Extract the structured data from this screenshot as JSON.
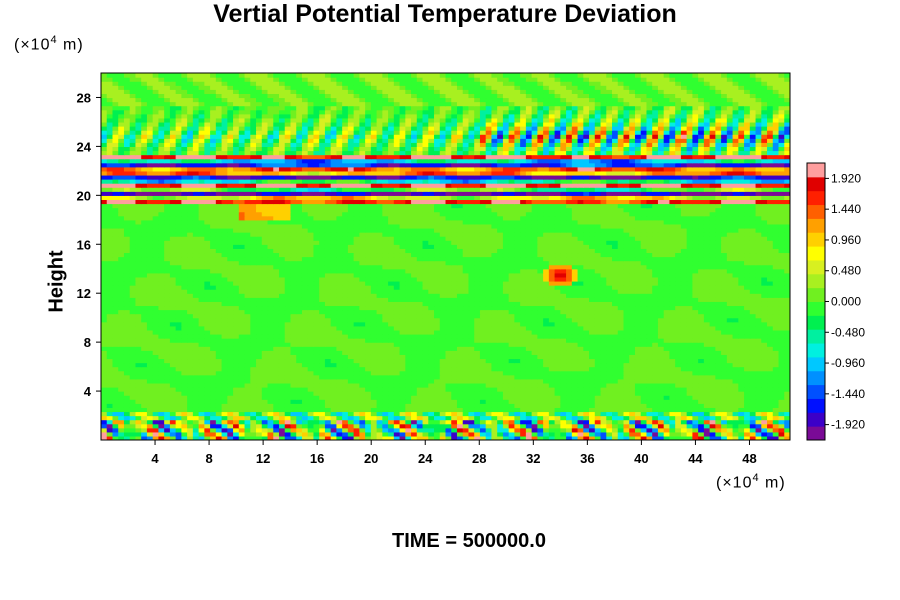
{
  "chart_data": {
    "type": "heatmap",
    "title": "Vertial Potential Temperature Deviation",
    "ylabel": "Height",
    "xunit": {
      "prefix": "(×10",
      "exp": "4",
      "suffix": " m)"
    },
    "yunit": {
      "prefix": "(×10",
      "exp": "4",
      "suffix": " m)"
    },
    "xlim": [
      0,
      51
    ],
    "ylim": [
      0,
      30
    ],
    "x_ticks": [
      4,
      8,
      12,
      16,
      20,
      24,
      28,
      32,
      36,
      40,
      44,
      48
    ],
    "y_ticks": [
      4,
      8,
      12,
      16,
      20,
      24,
      28
    ],
    "colorbar": {
      "min": -2.16,
      "max": 2.16,
      "step": 0.12,
      "tick_labels": [
        "1.920",
        "1.440",
        "0.960",
        "0.480",
        "0.000",
        "-0.480",
        "-0.960",
        "-1.440",
        "-1.920"
      ],
      "tick_values": [
        1.92,
        1.44,
        0.96,
        0.48,
        0.0,
        -0.48,
        -0.96,
        -1.44,
        -1.92
      ],
      "colors": [
        "#7a0a96",
        "#3c00c8",
        "#0010ff",
        "#0050ff",
        "#0090ff",
        "#00c8ff",
        "#00f0e0",
        "#00f0a0",
        "#00f050",
        "#30ff30",
        "#70f020",
        "#a8f020",
        "#d8f020",
        "#ffff00",
        "#ffd000",
        "#ffa000",
        "#ff6000",
        "#ff2000",
        "#e00000",
        "#ff9e9e"
      ]
    },
    "features": [
      {
        "desc": "surface layer strong alternating anomalies",
        "y_range": [
          0,
          1.5
        ],
        "amplitude": 2.0
      },
      {
        "desc": "tropopause bands",
        "y_range": [
          19.5,
          23
        ],
        "amplitude": 2.0
      },
      {
        "desc": "upper wave pattern",
        "y_range": [
          23,
          27
        ],
        "x_range": [
          30,
          51
        ],
        "amplitude": 1.9
      },
      {
        "desc": "local warm anomaly",
        "x": 34.0,
        "y": 13.5,
        "amplitude": 1.8
      },
      {
        "desc": "background",
        "y_range": [
          2,
          19
        ],
        "amplitude": 0.2
      }
    ]
  },
  "footer": {
    "time_label": "TIME = 500000.0"
  }
}
